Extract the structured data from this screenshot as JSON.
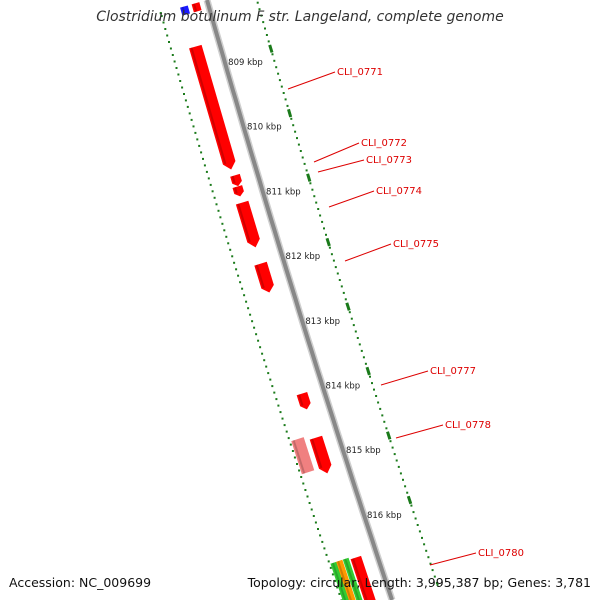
{
  "title": "Clostridium botulinum F str. Langeland, complete genome",
  "footer": {
    "accession": "Accession: NC_009699",
    "summary": "Topology: circular; Length: 3,995,387 bp; Genes: 3,781"
  },
  "ticks": [
    {
      "kbp": 809,
      "label": "809 kbp"
    },
    {
      "kbp": 810,
      "label": "810 kbp"
    },
    {
      "kbp": 811,
      "label": "811 kbp"
    },
    {
      "kbp": 812,
      "label": "812 kbp"
    },
    {
      "kbp": 813,
      "label": "813 kbp"
    },
    {
      "kbp": 814,
      "label": "814 kbp"
    },
    {
      "kbp": 815,
      "label": "815 kbp"
    },
    {
      "kbp": 816,
      "label": "816 kbp"
    }
  ],
  "gene_labels": [
    "CLI_0771",
    "CLI_0772",
    "CLI_0773",
    "CLI_0774",
    "CLI_0775",
    "CLI_0777",
    "CLI_0778",
    "CLI_0780"
  ],
  "colors": {
    "gene": "#ff0000",
    "gene_light": "#f08080",
    "backbone": "#888888",
    "tick": "#1a7a1a",
    "label": "#dd0000",
    "blue": "#1a1aff",
    "orange": "#ff9900",
    "green": "#33cc33"
  }
}
